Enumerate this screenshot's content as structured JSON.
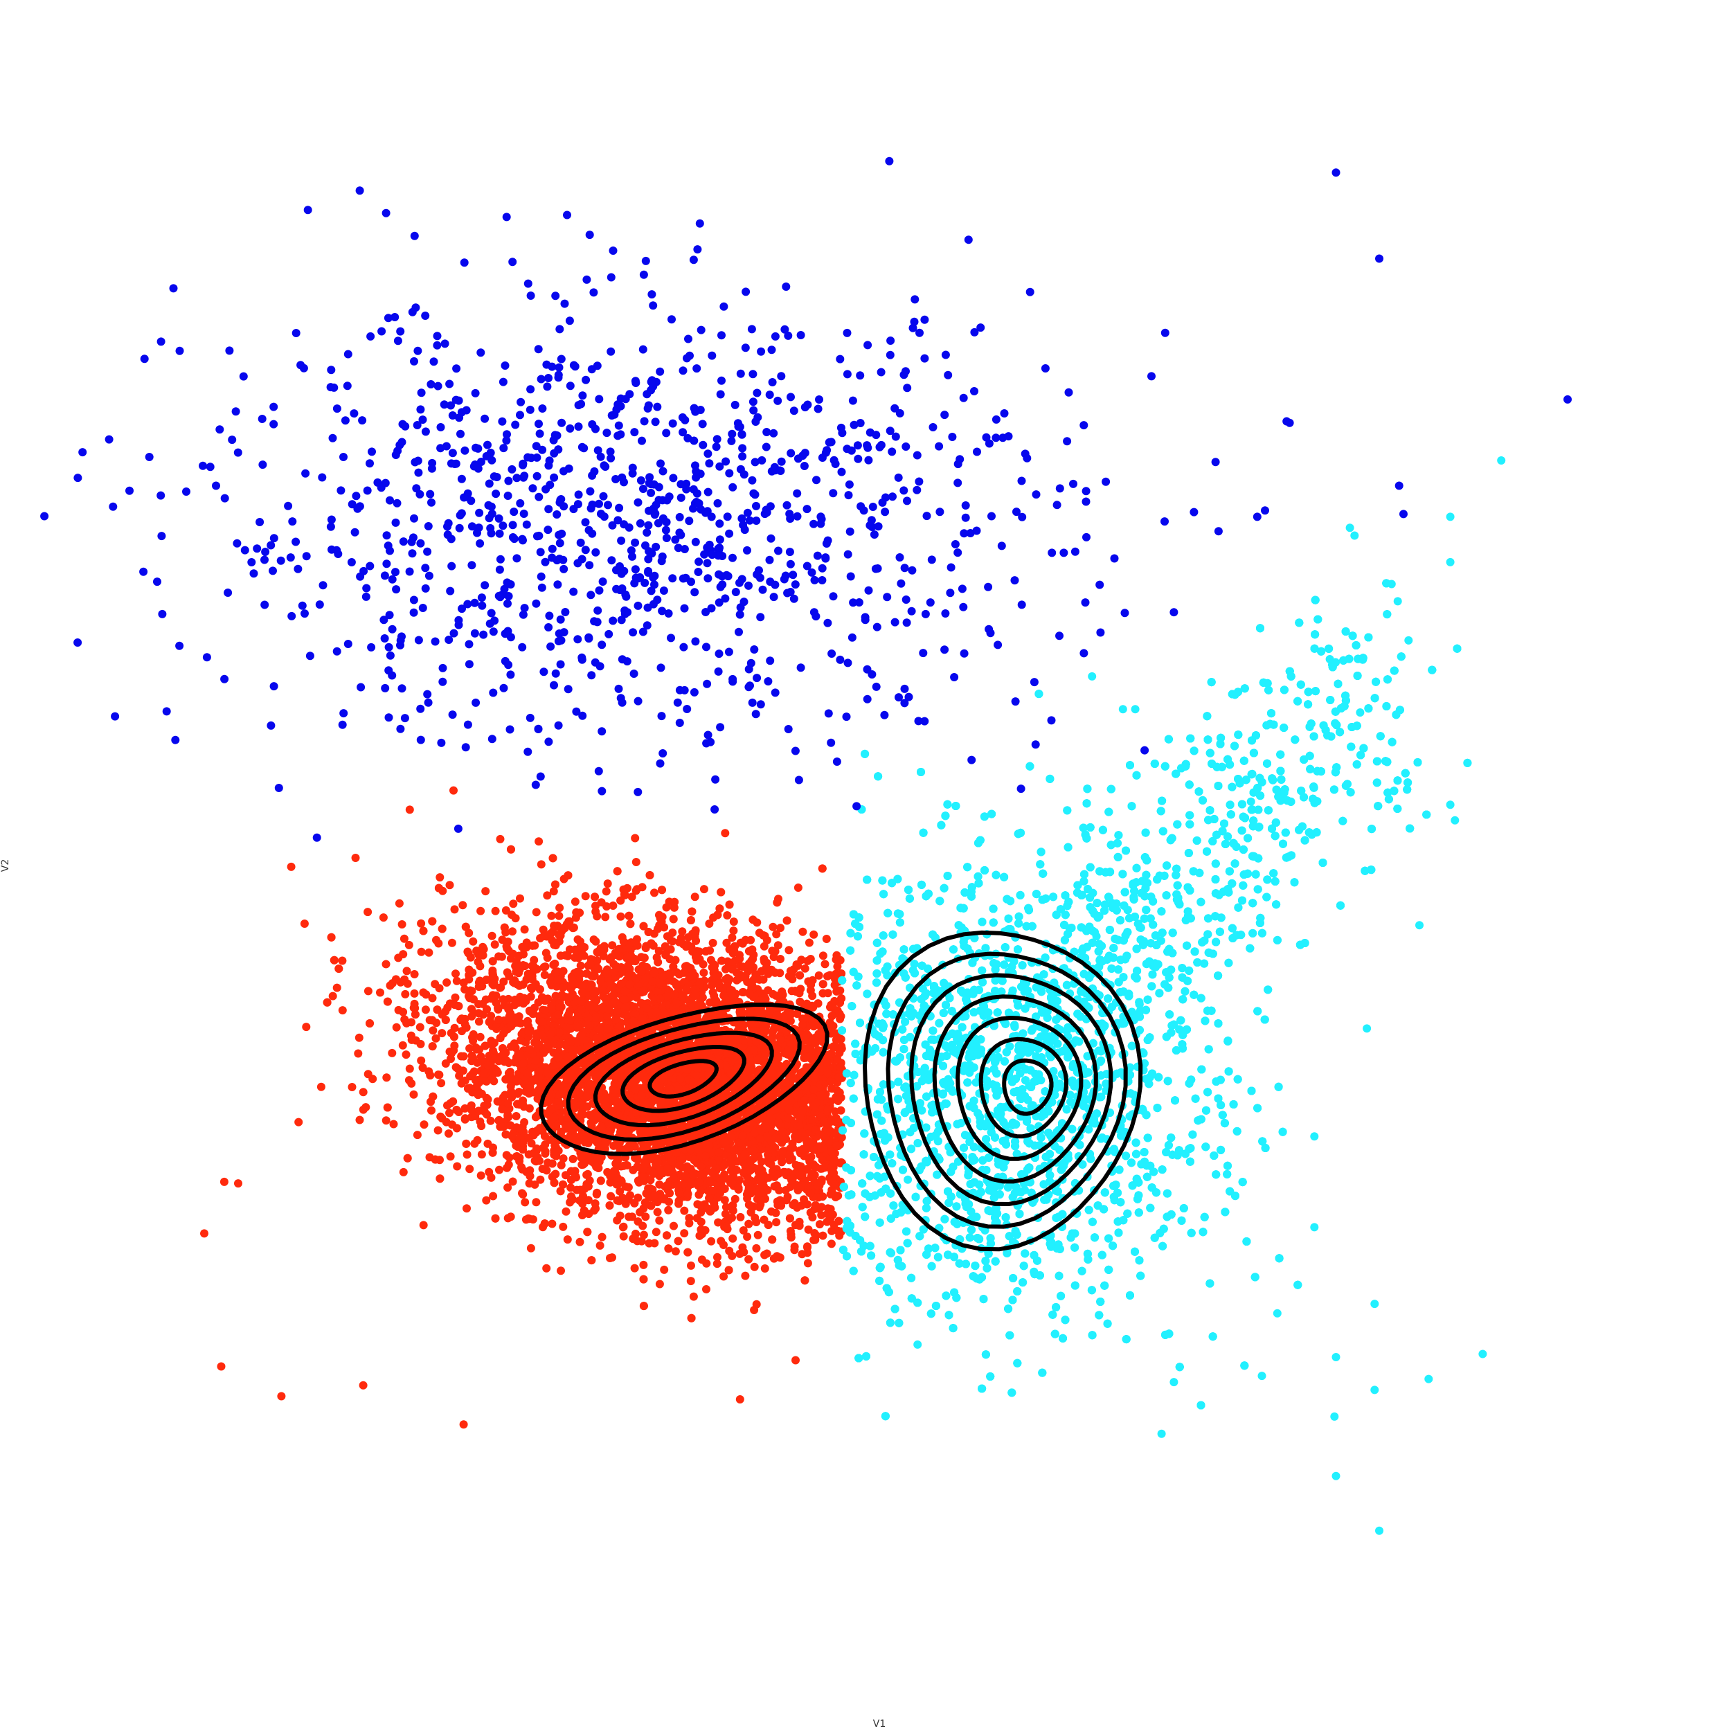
{
  "chart_data": {
    "type": "scatter",
    "title": "",
    "xlabel": "V1",
    "ylabel": "V2",
    "xlim": [
      0,
      1
    ],
    "ylim": [
      0,
      1
    ],
    "grid": false,
    "legend": "none",
    "contours": true,
    "series": [
      {
        "color": "#ff2a0d",
        "center": [
          0.375,
          0.355
        ],
        "spread": [
          0.075,
          0.045
        ],
        "n_points": 7000,
        "outliers": [
          [
            0.065,
            0.256
          ],
          [
            0.076,
            0.171
          ],
          [
            0.115,
            0.152
          ],
          [
            0.168,
            0.159
          ],
          [
            0.233,
            0.134
          ],
          [
            0.412,
            0.15
          ],
          [
            0.448,
            0.175
          ],
          [
            0.078,
            0.289
          ],
          [
            0.087,
            0.288
          ],
          [
            0.235,
            0.272
          ],
          [
            0.28,
            0.276
          ],
          [
            0.456,
            0.237
          ],
          [
            0.278,
            0.265
          ],
          [
            0.163,
            0.496
          ],
          [
            0.13,
            0.454
          ],
          [
            0.151,
            0.413
          ]
        ],
        "contour_levels": 5
      },
      {
        "color": "#22f0ff",
        "center": [
          0.58,
          0.35
        ],
        "spread": [
          0.07,
          0.07
        ],
        "n_points": 9000,
        "outliers": [
          [
            0.905,
            0.75
          ],
          [
            0.872,
            0.714
          ],
          [
            0.807,
            0.707
          ],
          [
            0.872,
            0.685
          ],
          [
            0.838,
            0.66
          ],
          [
            0.845,
            0.635
          ],
          [
            0.794,
            0.623
          ],
          [
            0.81,
            0.702
          ],
          [
            0.834,
            0.671
          ],
          [
            0.64,
            0.612
          ],
          [
            0.66,
            0.591
          ],
          [
            0.668,
            0.591
          ],
          [
            0.872,
            0.53
          ],
          [
            0.875,
            0.52
          ],
          [
            0.852,
            0.453
          ],
          [
            0.818,
            0.387
          ],
          [
            0.823,
            0.211
          ],
          [
            0.798,
            0.101
          ],
          [
            0.826,
            0.066
          ],
          [
            0.823,
            0.156
          ],
          [
            0.797,
            0.139
          ],
          [
            0.798,
            0.177
          ],
          [
            0.858,
            0.163
          ],
          [
            0.893,
            0.179
          ],
          [
            0.685,
            0.128
          ],
          [
            0.527,
            0.185
          ],
          [
            0.784,
            0.26
          ],
          [
            0.784,
            0.318
          ],
          [
            0.693,
            0.161
          ],
          [
            0.75,
            0.165
          ],
          [
            0.76,
            0.205
          ]
        ],
        "contour_levels": 7
      },
      {
        "color": "#0707ed",
        "center": [
          0.34,
          0.71
        ],
        "spread": [
          0.14,
          0.07
        ],
        "n_points": 1100,
        "outliers": [
          [
            0.798,
            0.934
          ],
          [
            0.826,
            0.879
          ],
          [
            0.56,
            0.891
          ],
          [
            0.948,
            0.789
          ],
          [
            0.752,
            0.718
          ],
          [
            0.768,
            0.774
          ],
          [
            0.72,
            0.749
          ],
          [
            0.706,
            0.717
          ],
          [
            0.687,
            0.711
          ],
          [
            0.693,
            0.653
          ],
          [
            0.121,
            0.688
          ],
          [
            0.151,
            0.628
          ],
          [
            0.138,
            0.509
          ],
          [
            0.766,
            0.775
          ],
          [
            0.747,
            0.714
          ]
        ]
      }
    ]
  }
}
